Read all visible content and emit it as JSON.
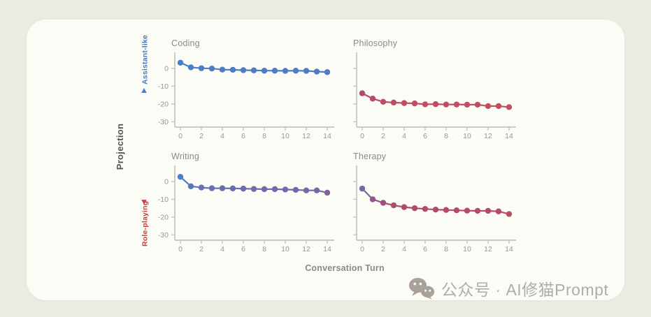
{
  "figure": {
    "xlabel": "Conversation Turn",
    "ylabel": "Projection",
    "direction_labels": {
      "up": "Assistant-like",
      "down": "Role-playing"
    }
  },
  "watermark": {
    "text": "公众号 · AI修猫Prompt",
    "icon": "wechat-icon"
  },
  "colors": {
    "page_bg": "#ebece1",
    "card_bg": "#fcfcf7",
    "axis": "#c6c3bb",
    "tick_text": "#9a968d",
    "title_text": "#8b8b85",
    "xlabel_text": "#8b8b85",
    "ylabel_text": "#55564e",
    "up_label": "#3b79d2",
    "down_label": "#d6382f",
    "arrow_top": "#4a7ec8",
    "arrow_bottom": "#d04a43",
    "watermark": "#b2ada4",
    "wechat_icon": "#a8a29a"
  },
  "colormap": [
    [
      3,
      "#4a7fc9"
    ],
    [
      -2,
      "#4d7cc3"
    ],
    [
      -3.5,
      "#6a6fae"
    ],
    [
      -6,
      "#7b64a0"
    ],
    [
      -10,
      "#91578a"
    ],
    [
      -13,
      "#a84e72"
    ],
    [
      -16,
      "#b34a66"
    ],
    [
      -20,
      "#bf4e63"
    ],
    [
      -33,
      "#c25263"
    ]
  ],
  "chart_data": [
    {
      "type": "line",
      "title": "Coding",
      "row": 0,
      "col": 0,
      "show_y_labels": true,
      "x": [
        0,
        1,
        2,
        3,
        4,
        5,
        6,
        7,
        8,
        9,
        10,
        11,
        12,
        13,
        14
      ],
      "values": [
        3.2,
        0.6,
        0.1,
        -0.1,
        -0.7,
        -0.8,
        -1.0,
        -1.1,
        -1.3,
        -1.3,
        -1.4,
        -1.3,
        -1.4,
        -1.8,
        -2.1
      ],
      "xticks": [
        0,
        2,
        4,
        6,
        8,
        10,
        12,
        14
      ],
      "yticks": [
        0,
        -10,
        -20,
        -30
      ],
      "xlim": [
        -0.55,
        14.7
      ],
      "ylim": [
        -33,
        9
      ],
      "grid": false
    },
    {
      "type": "line",
      "title": "Philosophy",
      "row": 0,
      "col": 1,
      "show_y_labels": false,
      "x": [
        0,
        1,
        2,
        3,
        4,
        5,
        6,
        7,
        8,
        9,
        10,
        11,
        12,
        13,
        14
      ],
      "values": [
        -14,
        -17,
        -18.8,
        -19.2,
        -19.5,
        -19.7,
        -20.2,
        -20.1,
        -20.3,
        -20.3,
        -20.4,
        -20.4,
        -21.2,
        -21.2,
        -21.8
      ],
      "xticks": [
        0,
        2,
        4,
        6,
        8,
        10,
        12,
        14
      ],
      "yticks": [
        0,
        -10,
        -20,
        -30
      ],
      "xlim": [
        -0.55,
        14.7
      ],
      "ylim": [
        -33,
        9
      ],
      "grid": false
    },
    {
      "type": "line",
      "title": "Writing",
      "row": 1,
      "col": 0,
      "show_y_labels": true,
      "x": [
        0,
        1,
        2,
        3,
        4,
        5,
        6,
        7,
        8,
        9,
        10,
        11,
        12,
        13,
        14
      ],
      "values": [
        2.6,
        -2.7,
        -3.4,
        -3.8,
        -3.8,
        -3.9,
        -4.0,
        -4.2,
        -4.3,
        -4.3,
        -4.5,
        -4.7,
        -5.0,
        -5.0,
        -6.3
      ],
      "xticks": [
        0,
        2,
        4,
        6,
        8,
        10,
        12,
        14
      ],
      "yticks": [
        0,
        -10,
        -20,
        -30
      ],
      "xlim": [
        -0.55,
        14.7
      ],
      "ylim": [
        -33,
        9
      ],
      "grid": false
    },
    {
      "type": "line",
      "title": "Therapy",
      "row": 1,
      "col": 1,
      "show_y_labels": false,
      "x": [
        0,
        1,
        2,
        3,
        4,
        5,
        6,
        7,
        8,
        9,
        10,
        11,
        12,
        13,
        14
      ],
      "values": [
        -4,
        -10,
        -12,
        -13.4,
        -14.4,
        -15,
        -15.4,
        -15.8,
        -16,
        -16.2,
        -16.4,
        -16.5,
        -16.5,
        -16.8,
        -18.3
      ],
      "xticks": [
        0,
        2,
        4,
        6,
        8,
        10,
        12,
        14
      ],
      "yticks": [
        0,
        -10,
        -20,
        -30
      ],
      "xlim": [
        -0.55,
        14.7
      ],
      "ylim": [
        -33,
        9
      ],
      "grid": false
    }
  ]
}
